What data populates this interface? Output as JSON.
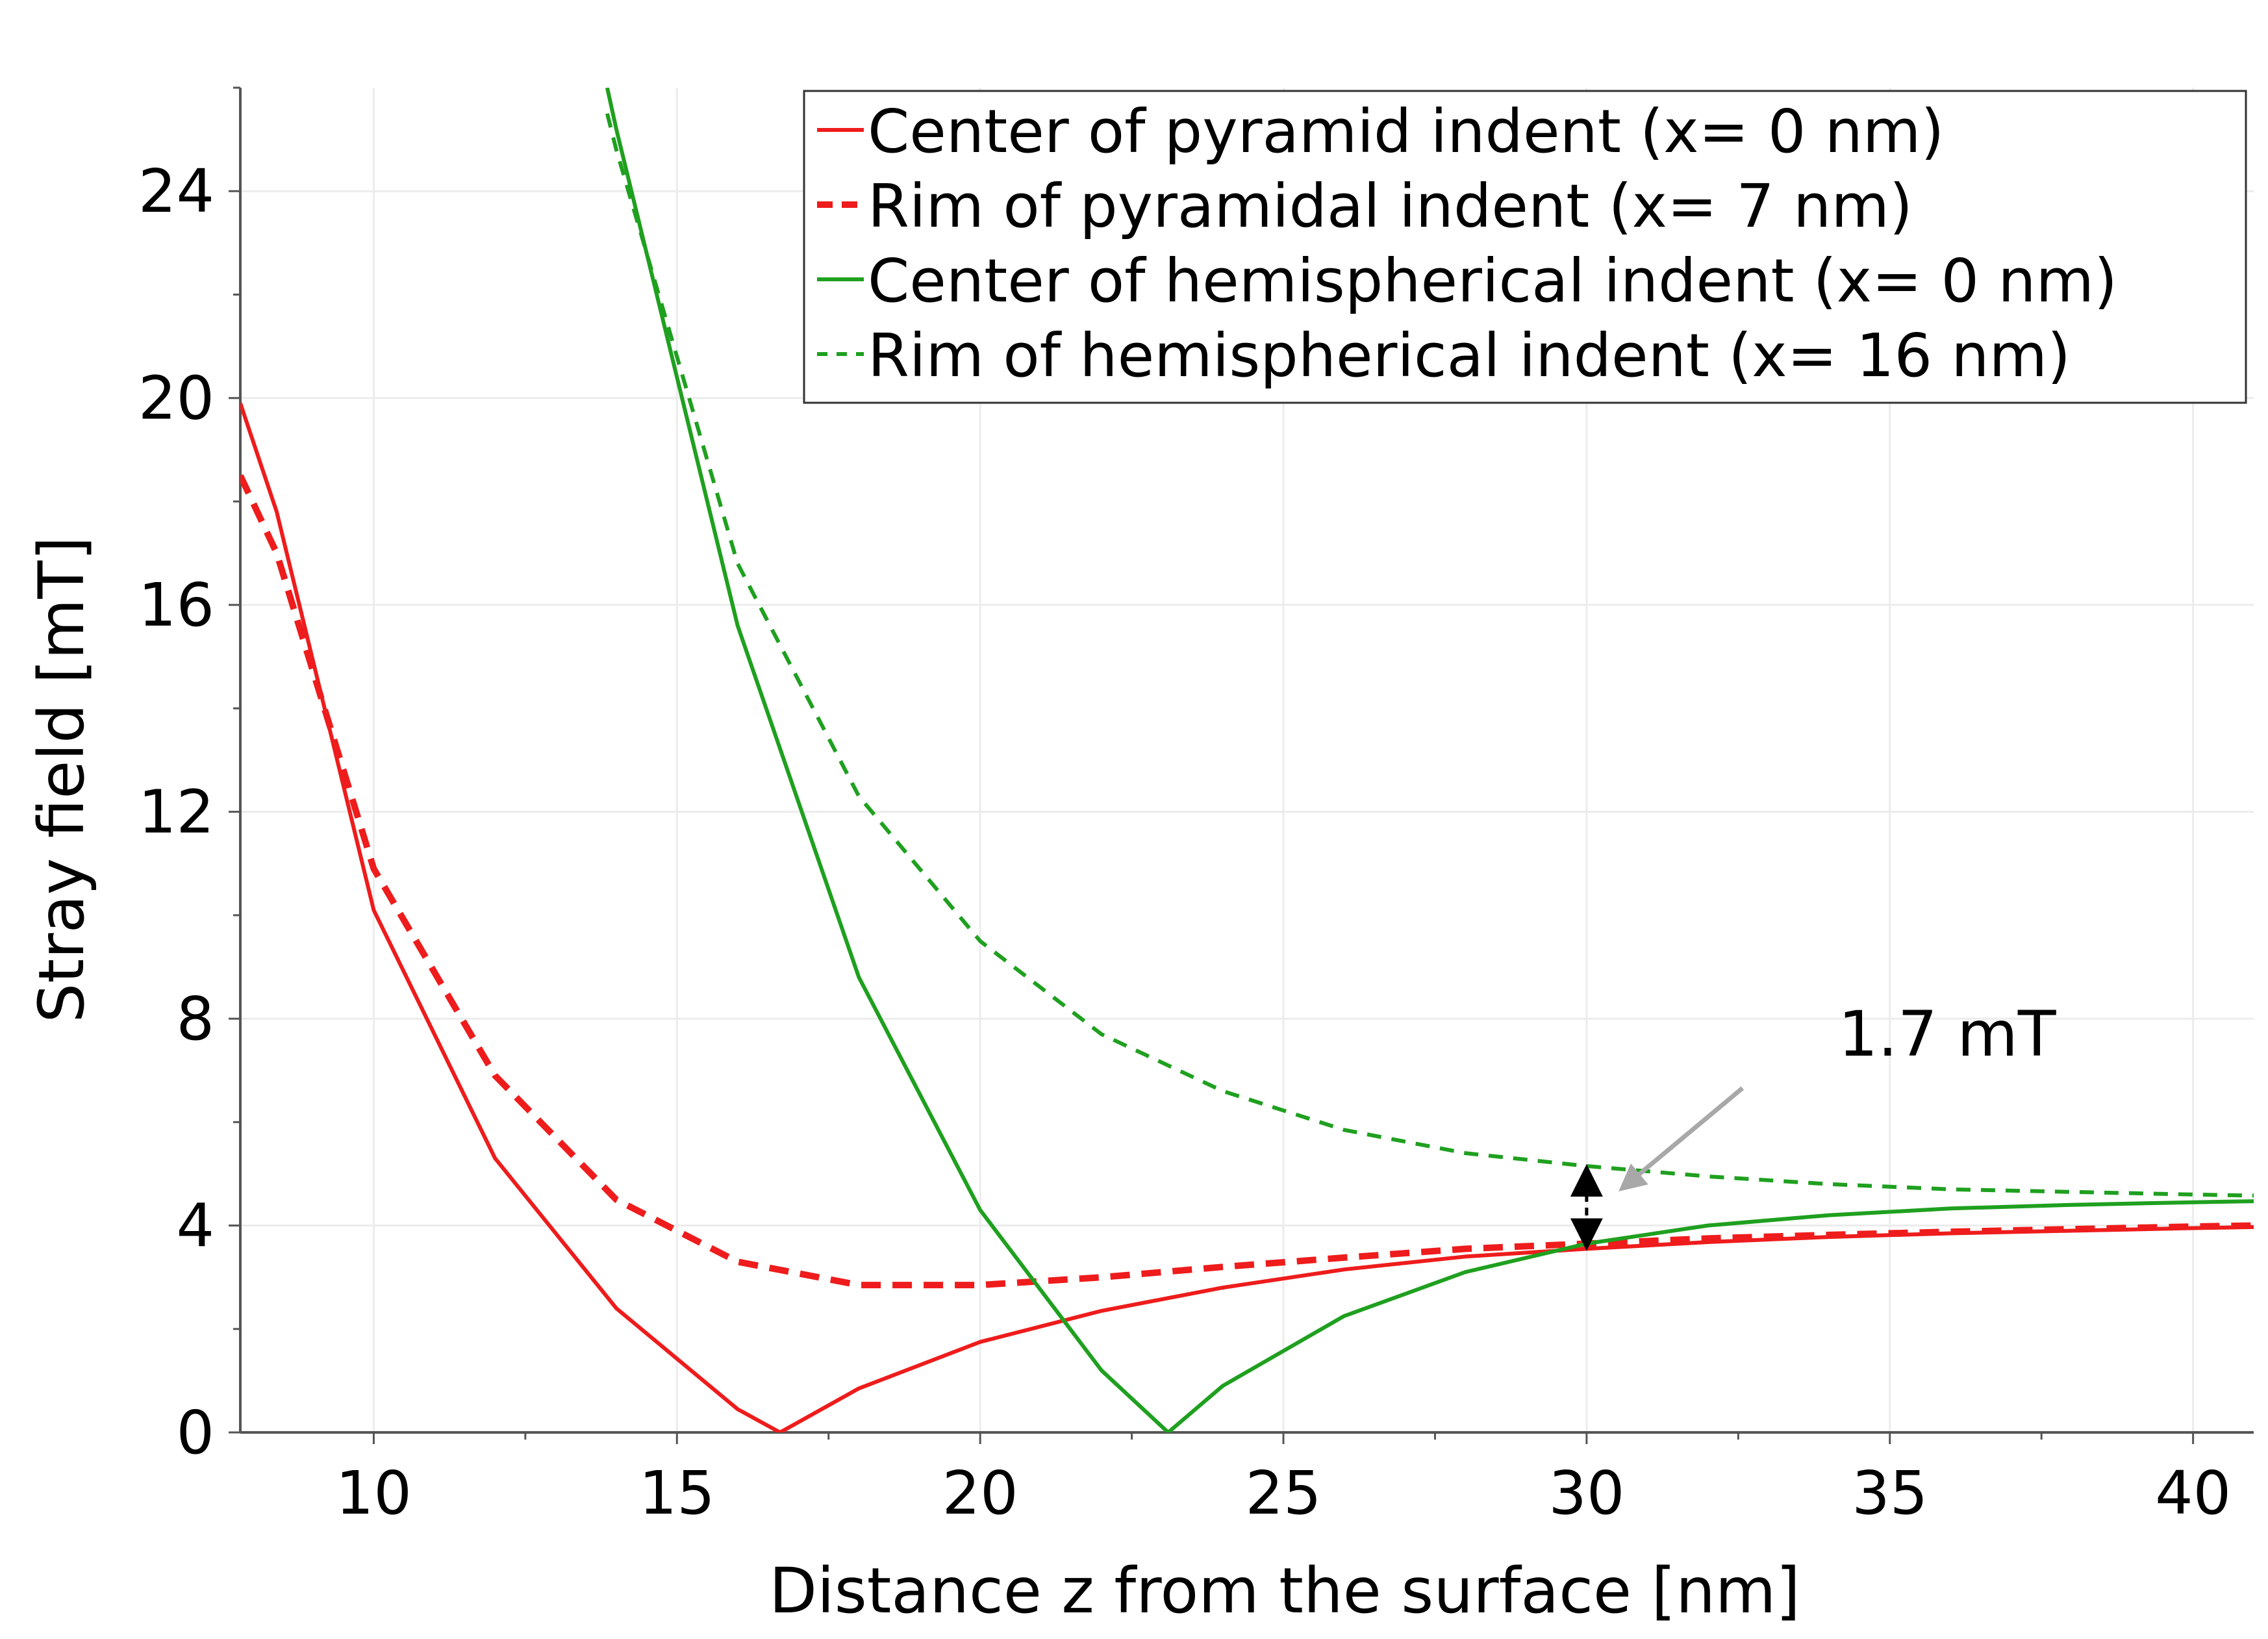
{
  "chart_data": {
    "type": "line",
    "title": "",
    "xlabel": "Distance z from the surface [nm]",
    "ylabel": "Stray field [mT]",
    "xlim": [
      7.8,
      41
    ],
    "ylim": [
      0,
      26
    ],
    "xticks": [
      10,
      15,
      20,
      25,
      30,
      35,
      40
    ],
    "yticks": [
      0,
      4,
      8,
      12,
      16,
      20,
      24
    ],
    "xtick_labels": [
      "10",
      "15",
      "20",
      "25",
      "30",
      "35",
      "40"
    ],
    "ytick_labels": [
      "0",
      "4",
      "8",
      "12",
      "16",
      "20",
      "24"
    ],
    "grid": true,
    "legend_position": "top-right",
    "series": [
      {
        "name": "Center of pyramid indent (x= 0 nm)",
        "color": "#ee1c1c",
        "style": "solid",
        "x": [
          7.8,
          8.4,
          10,
          12,
          14,
          16,
          16.7,
          18,
          20,
          22,
          24,
          26,
          28,
          30,
          32,
          34,
          36,
          38,
          40,
          41
        ],
        "y": [
          19.9,
          17.8,
          10.1,
          5.3,
          2.4,
          0.45,
          0,
          0.85,
          1.75,
          2.35,
          2.8,
          3.15,
          3.4,
          3.55,
          3.68,
          3.78,
          3.85,
          3.9,
          3.95,
          3.97
        ]
      },
      {
        "name": "Rim of pyramidal indent (x= 7 nm)",
        "color": "#ee1c1c",
        "style": "dashed-thick",
        "x": [
          7.8,
          8.4,
          10,
          12,
          14,
          16,
          18,
          20,
          22,
          24,
          26,
          28,
          30,
          32,
          34,
          36,
          38,
          40,
          41
        ],
        "y": [
          18.5,
          17.0,
          10.9,
          6.9,
          4.5,
          3.3,
          2.85,
          2.85,
          3.0,
          3.2,
          3.38,
          3.55,
          3.65,
          3.75,
          3.82,
          3.88,
          3.93,
          3.98,
          4.0
        ]
      },
      {
        "name": "Center of hemispherical indent (x= 0 nm)",
        "color": "#1fa01f",
        "style": "solid",
        "x": [
          13.85,
          14,
          16,
          18,
          20,
          22,
          23.1,
          24,
          26,
          28,
          30,
          32,
          34,
          36,
          38,
          40,
          41
        ],
        "y": [
          26.0,
          25.2,
          15.6,
          8.8,
          4.3,
          1.2,
          0,
          0.9,
          2.25,
          3.1,
          3.65,
          4.0,
          4.2,
          4.33,
          4.4,
          4.45,
          4.47
        ]
      },
      {
        "name": "Rim of hemispherical indent (x= 16 nm)",
        "color": "#1fa01f",
        "style": "dashed",
        "x": [
          13.85,
          14,
          16,
          18,
          20,
          22,
          24,
          26,
          28,
          30,
          32,
          34,
          36,
          38,
          40,
          41
        ],
        "y": [
          25.5,
          24.8,
          16.8,
          12.3,
          9.5,
          7.7,
          6.6,
          5.85,
          5.4,
          5.15,
          4.95,
          4.8,
          4.7,
          4.65,
          4.6,
          4.58
        ]
      }
    ],
    "annotations": [
      {
        "text": "1.7 mT",
        "x": 30,
        "y_top": 5.15,
        "y_bottom": 3.55,
        "style": "double-headed dashed arrow with gray pointer arrow"
      }
    ]
  }
}
